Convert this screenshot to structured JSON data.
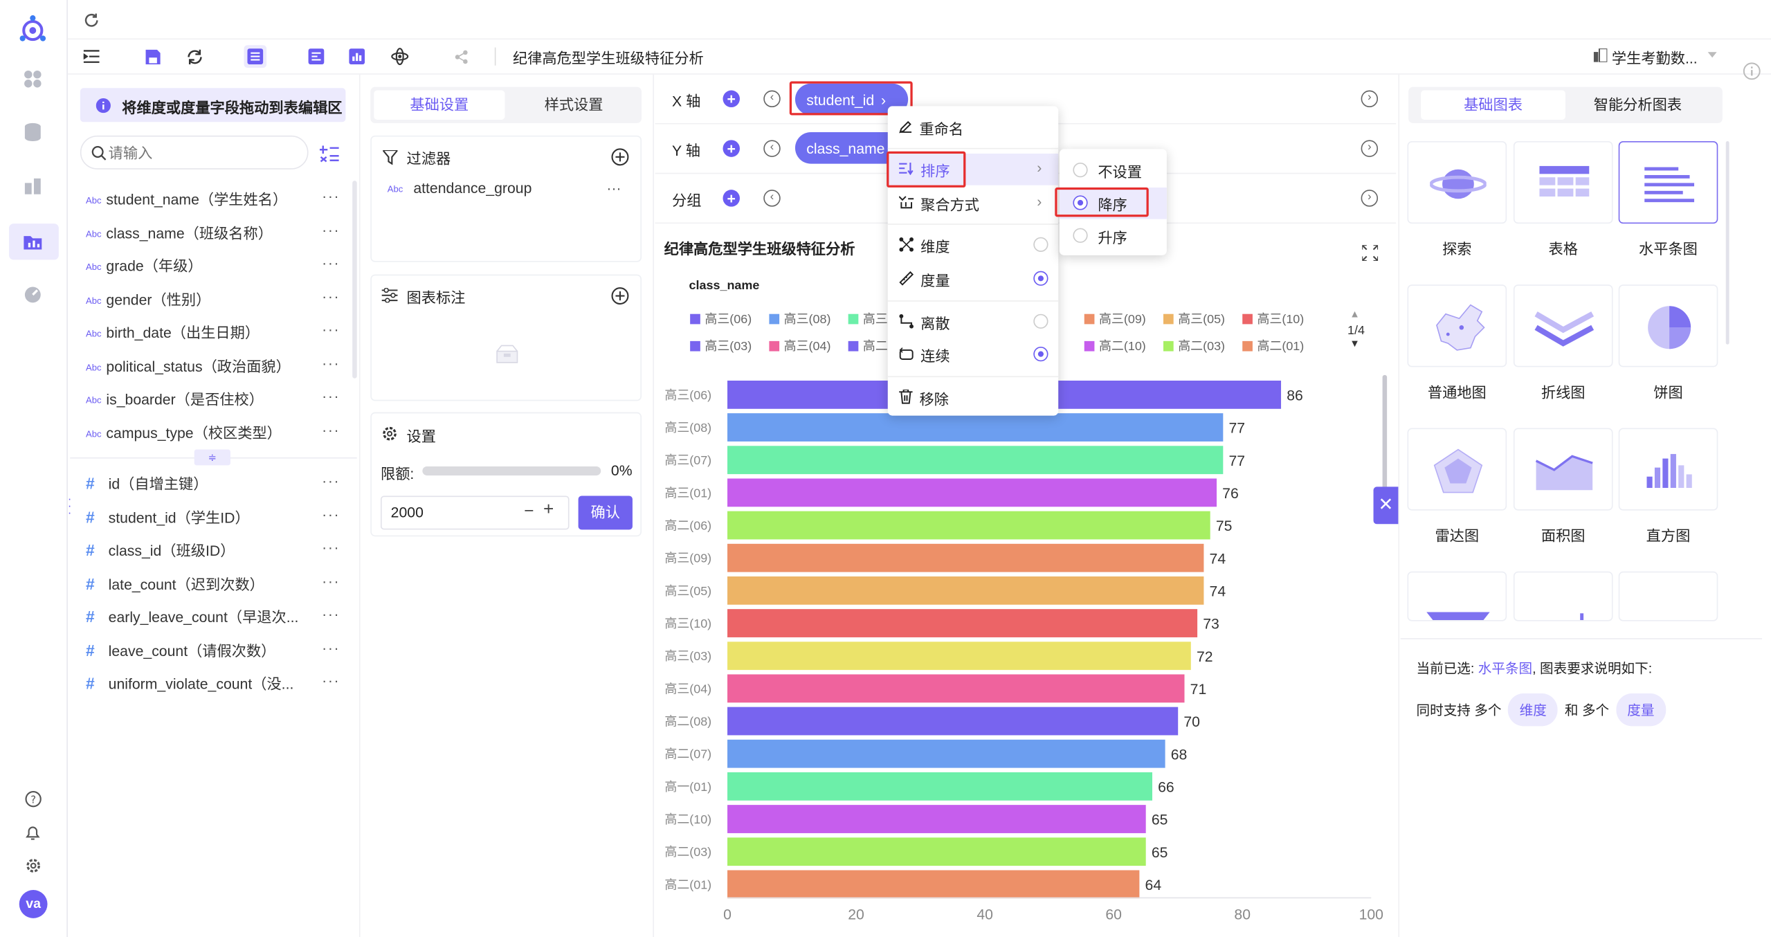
{
  "toolbar": {
    "title": "纪律高危型学生班级特征分析",
    "dataset": "学生考勤数..."
  },
  "fields": {
    "hint": "将维度或度量字段拖动到表编辑区",
    "search_placeholder": "请输入",
    "dimensions": [
      {
        "type": "Abc",
        "label": "student_name（学生姓名）"
      },
      {
        "type": "Abc",
        "label": "class_name（班级名称）"
      },
      {
        "type": "Abc",
        "label": "grade（年级）"
      },
      {
        "type": "Abc",
        "label": "gender（性别）"
      },
      {
        "type": "Abc",
        "label": "birth_date（出生日期）"
      },
      {
        "type": "Abc",
        "label": "political_status（政治面貌）"
      },
      {
        "type": "Abc",
        "label": "is_boarder（是否住校）"
      },
      {
        "type": "Abc",
        "label": "campus_type（校区类型）"
      }
    ],
    "measures": [
      {
        "type": "#",
        "label": "id（自增主键）"
      },
      {
        "type": "#",
        "label": "student_id（学生ID）"
      },
      {
        "type": "#",
        "label": "class_id（班级ID）"
      },
      {
        "type": "#",
        "label": "late_count（迟到次数）"
      },
      {
        "type": "#",
        "label": "early_leave_count（早退次..."
      },
      {
        "type": "#",
        "label": "leave_count（请假次数）"
      },
      {
        "type": "#",
        "label": "uniform_violate_count（没..."
      }
    ],
    "more": "···"
  },
  "settings": {
    "tab_basic": "基础设置",
    "tab_style": "样式设置",
    "filter_title": "过滤器",
    "filter_item_type": "Abc",
    "filter_item": "attendance_group",
    "annotation_title": "图表标注",
    "settings_title": "设置",
    "limit_label": "限额:",
    "limit_percent": "0%",
    "limit_value": "2000",
    "stepper_minus": "−",
    "stepper_plus": "+",
    "confirm": "确认"
  },
  "axes": {
    "x_label": "X 轴",
    "y_label": "Y 轴",
    "group_label": "分组",
    "x_tag": "student_id",
    "y_tag": "class_name"
  },
  "context_menu": {
    "rename": "重命名",
    "sort": "排序",
    "aggregate": "聚合方式",
    "dimension": "维度",
    "measure": "度量",
    "discrete": "离散",
    "continuous": "连续",
    "remove": "移除"
  },
  "sort_menu": {
    "none": "不设置",
    "desc": "降序",
    "asc": "升序"
  },
  "chart_panel": {
    "title": "纪律高危型学生班级特征分析",
    "legend_title": "class_name",
    "legend_page": "1/4"
  },
  "legend": [
    {
      "name": "高三(06)",
      "color": "#7864ef"
    },
    {
      "name": "高三(08)",
      "color": "#6c9ef0"
    },
    {
      "name": "高三",
      "color": "#6cefa9"
    },
    {
      "name": "高三(09)",
      "color": "#ed9068"
    },
    {
      "name": "高三(05)",
      "color": "#edb466"
    },
    {
      "name": "高三(10)",
      "color": "#ec6467"
    },
    {
      "name": "高三(03)",
      "color": "#7864ef"
    },
    {
      "name": "高三(04)",
      "color": "#ef639d"
    },
    {
      "name": "高二",
      "color": "#7864ef"
    },
    {
      "name": "高二(10)",
      "color": "#c65eed"
    },
    {
      "name": "高二(03)",
      "color": "#a7ef63"
    },
    {
      "name": "高二(01)",
      "color": "#ed9068"
    }
  ],
  "chart_data": {
    "type": "bar",
    "orientation": "horizontal",
    "title": "纪律高危型学生班级特征分析",
    "categories": [
      "高三(06)",
      "高三(08)",
      "高三(07)",
      "高三(01)",
      "高二(06)",
      "高三(09)",
      "高三(05)",
      "高三(10)",
      "高三(03)",
      "高三(04)",
      "高二(08)",
      "高二(07)",
      "高一(01)",
      "高二(10)",
      "高二(03)",
      "高二(01)"
    ],
    "values": [
      86,
      77,
      77,
      76,
      75,
      74,
      74,
      73,
      72,
      71,
      70,
      68,
      66,
      65,
      65,
      64
    ],
    "colors": [
      "#7864ef",
      "#6c9ef0",
      "#6cefa9",
      "#c65eed",
      "#a7ef63",
      "#ed9068",
      "#edb466",
      "#ec6467",
      "#ebe36a",
      "#ef639d",
      "#7864ef",
      "#6c9ef0",
      "#6cefa9",
      "#c65eed",
      "#a7ef63",
      "#ed9068"
    ],
    "xlim": [
      0,
      100
    ],
    "xticks": [
      0,
      20,
      40,
      60,
      80,
      100
    ]
  },
  "chart_types": {
    "tab_basic": "基础图表",
    "tab_smart": "智能分析图表",
    "items": [
      "探索",
      "表格",
      "水平条图",
      "普通地图",
      "折线图",
      "饼图",
      "雷达图",
      "面积图",
      "直方图"
    ],
    "selected_prefix": "当前已选:",
    "selected_name": "水平条图",
    "selected_suffix": ", 图表要求说明如下:",
    "req_1": "同时支持 多个",
    "req_dim": "维度",
    "req_2": "和 多个",
    "req_measure": "度量"
  },
  "user": {
    "avatar": "va"
  }
}
